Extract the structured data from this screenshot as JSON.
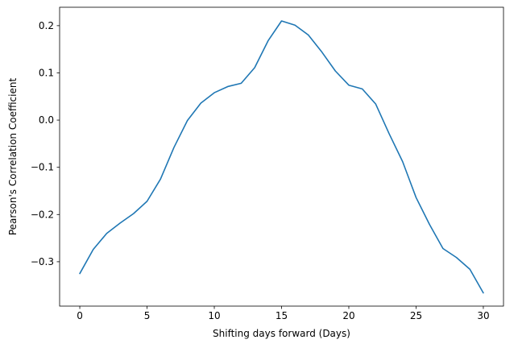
{
  "chart_data": {
    "type": "line",
    "title": "",
    "xlabel": "Shifting days forward (Days)",
    "ylabel": "Pearson's Correlation Coefficient",
    "xlim": [
      -1.5,
      31.5
    ],
    "ylim": [
      -0.394,
      0.239
    ],
    "x_ticks": [
      0,
      5,
      10,
      15,
      20,
      25,
      30
    ],
    "x_tick_labels": [
      "0",
      "5",
      "10",
      "15",
      "20",
      "25",
      "30"
    ],
    "y_ticks": [
      -0.3,
      -0.2,
      -0.1,
      0.0,
      0.1,
      0.2
    ],
    "y_tick_labels": [
      "−0.3",
      "−0.2",
      "−0.1",
      "0.0",
      "0.1",
      "0.2"
    ],
    "grid": false,
    "legend": "none",
    "series": [
      {
        "color": "#1f77b4",
        "x": [
          0,
          1,
          2,
          3,
          4,
          5,
          6,
          7,
          8,
          9,
          10,
          11,
          12,
          13,
          14,
          15,
          16,
          17,
          18,
          19,
          20,
          21,
          22,
          23,
          24,
          25,
          26,
          27,
          28,
          29,
          30
        ],
        "y": [
          -0.325,
          -0.274,
          -0.24,
          -0.218,
          -0.198,
          -0.172,
          -0.125,
          -0.058,
          -0.001,
          0.036,
          0.058,
          0.071,
          0.078,
          0.111,
          0.168,
          0.21,
          0.201,
          0.18,
          0.144,
          0.104,
          0.074,
          0.066,
          0.034,
          -0.029,
          -0.088,
          -0.164,
          -0.221,
          -0.272,
          -0.291,
          -0.316,
          -0.366
        ]
      }
    ]
  }
}
